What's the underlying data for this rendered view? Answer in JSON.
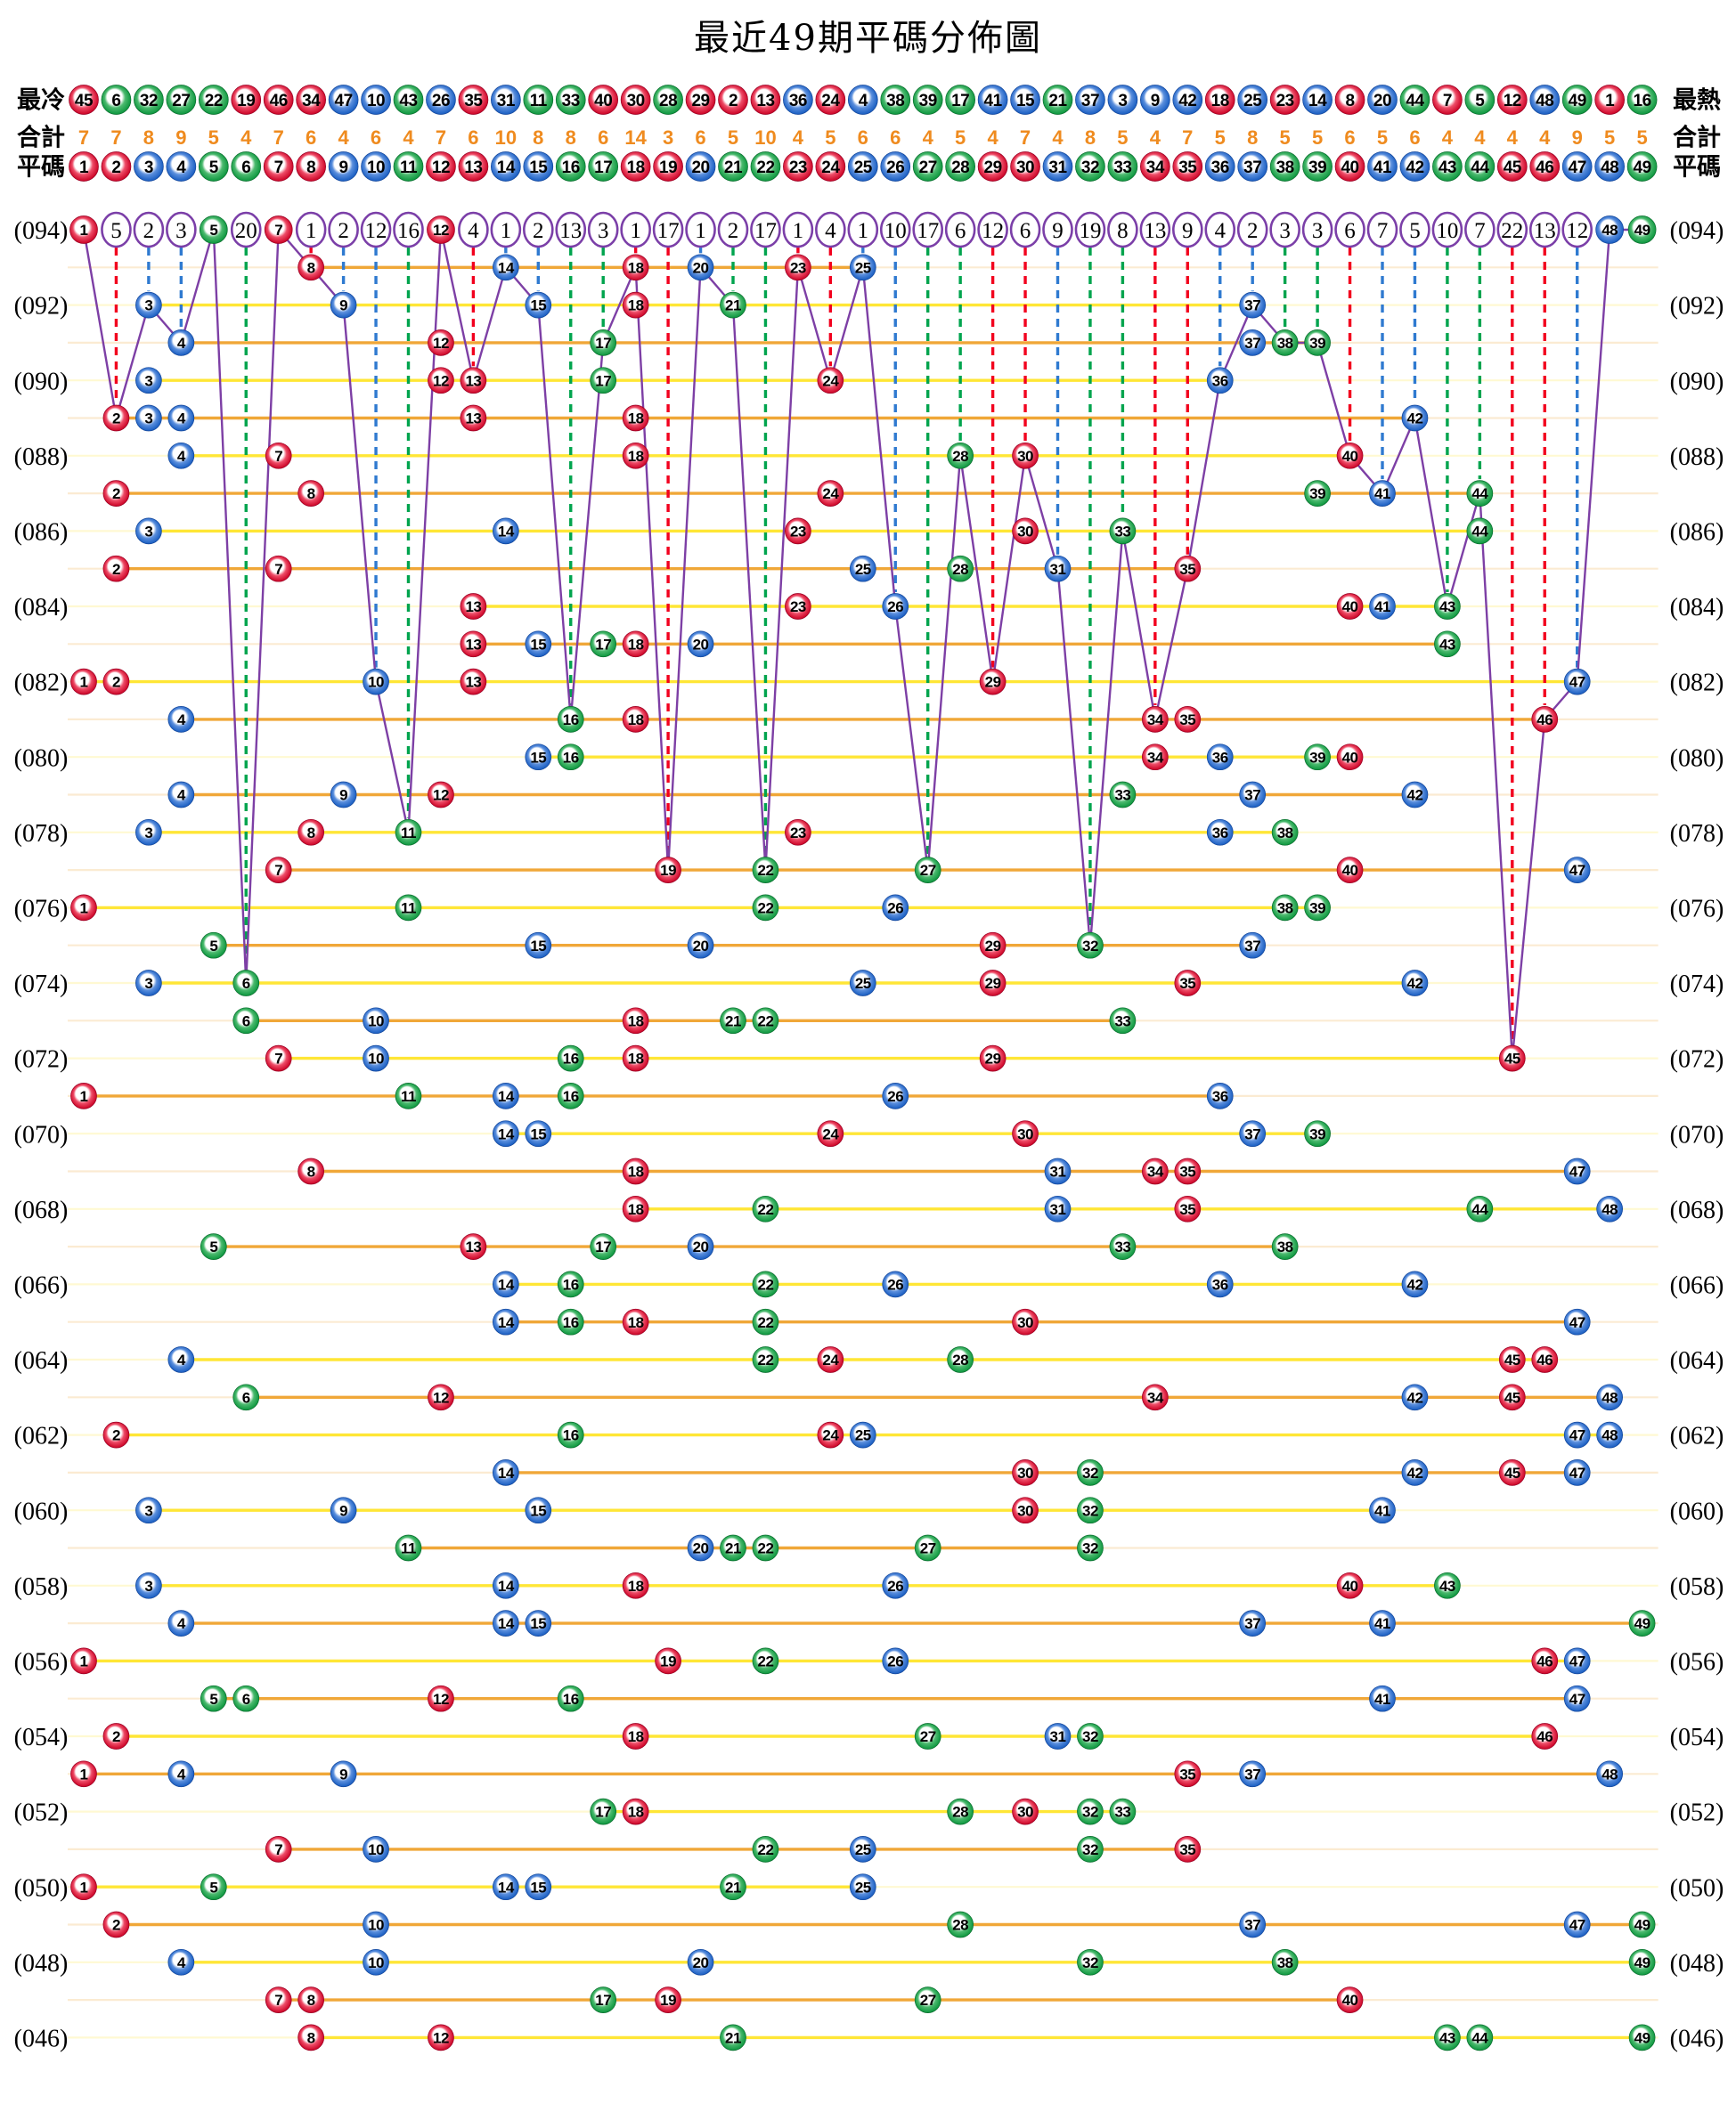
{
  "title": "最近49期平碼分佈圖",
  "header": {
    "cold_label": "最冷",
    "hot_label": "最熱",
    "total_label": "合計",
    "pingma_label": "平碼",
    "cold_order": [
      45,
      6,
      32,
      27,
      22,
      19,
      46,
      34,
      47,
      10,
      43,
      26,
      35,
      31,
      11,
      33,
      40,
      30,
      28,
      29,
      2,
      13,
      36,
      24,
      4,
      38,
      39,
      17,
      41,
      15,
      21,
      37,
      3,
      9,
      42,
      18,
      25,
      23,
      14,
      8,
      20,
      44,
      7,
      5,
      12,
      48,
      49,
      1,
      16
    ],
    "totals": [
      7,
      7,
      8,
      9,
      5,
      4,
      7,
      6,
      4,
      6,
      4,
      7,
      6,
      10,
      8,
      8,
      6,
      14,
      3,
      6,
      5,
      10,
      4,
      5,
      6,
      6,
      4,
      5,
      4,
      7,
      4,
      8,
      5,
      4,
      7,
      5,
      8,
      5,
      5,
      6,
      5,
      6,
      4,
      4,
      4,
      4,
      9,
      5,
      5
    ],
    "pingma_numbers": [
      1,
      2,
      3,
      4,
      5,
      6,
      7,
      8,
      9,
      10,
      11,
      12,
      13,
      14,
      15,
      16,
      17,
      18,
      19,
      20,
      21,
      22,
      23,
      24,
      25,
      26,
      27,
      28,
      29,
      30,
      31,
      32,
      33,
      34,
      35,
      36,
      37,
      38,
      39,
      40,
      41,
      42,
      43,
      44,
      45,
      46,
      47,
      48,
      49
    ]
  },
  "chart_data": {
    "type": "scatter",
    "x_axis": "ball-number-columns-1-to-49",
    "y_axis": "draw-periods-094-top-to-046-bottom",
    "top_period": {
      "period": 94,
      "label": "(094)",
      "drawn": [
        1,
        5,
        7,
        12,
        48,
        49
      ],
      "miss_counts": {
        "2": 5,
        "3": 2,
        "4": 3,
        "6": 20,
        "8": 1,
        "9": 2,
        "10": 12,
        "11": 16,
        "13": 4,
        "14": 1,
        "15": 2,
        "16": 13,
        "17": 3,
        "18": 1,
        "19": 17,
        "20": 1,
        "21": 2,
        "22": 17,
        "23": 1,
        "24": 4,
        "25": 1,
        "26": 10,
        "27": 17,
        "28": 6,
        "29": 12,
        "30": 6,
        "31": 9,
        "32": 19,
        "33": 8,
        "34": 13,
        "35": 9,
        "36": 4,
        "37": 2,
        "38": 3,
        "39": 3,
        "40": 6,
        "41": 7,
        "42": 5,
        "43": 10,
        "44": 7,
        "45": 22,
        "46": 13,
        "47": 12
      }
    },
    "periods": [
      {
        "period": 93,
        "label": "",
        "numbers": [
          8,
          14,
          18,
          20,
          23,
          25
        ]
      },
      {
        "period": 92,
        "label": "(092)",
        "numbers": [
          3,
          9,
          15,
          18,
          21,
          37
        ]
      },
      {
        "period": 91,
        "label": "",
        "numbers": [
          4,
          12,
          17,
          37,
          38,
          39
        ]
      },
      {
        "period": 90,
        "label": "(090)",
        "numbers": [
          3,
          12,
          13,
          17,
          24,
          36
        ]
      },
      {
        "period": 89,
        "label": "",
        "numbers": [
          2,
          3,
          4,
          13,
          18,
          42
        ]
      },
      {
        "period": 88,
        "label": "(088)",
        "numbers": [
          4,
          7,
          18,
          28,
          30,
          40
        ]
      },
      {
        "period": 87,
        "label": "",
        "numbers": [
          2,
          8,
          24,
          39,
          41,
          44
        ]
      },
      {
        "period": 86,
        "label": "(086)",
        "numbers": [
          3,
          14,
          23,
          30,
          33,
          44
        ]
      },
      {
        "period": 85,
        "label": "",
        "numbers": [
          2,
          7,
          25,
          28,
          31,
          35
        ]
      },
      {
        "period": 84,
        "label": "(084)",
        "numbers": [
          13,
          23,
          26,
          40,
          41,
          43
        ]
      },
      {
        "period": 83,
        "label": "",
        "numbers": [
          13,
          15,
          17,
          18,
          20,
          43
        ]
      },
      {
        "period": 82,
        "label": "(082)",
        "numbers": [
          1,
          2,
          10,
          13,
          29,
          47
        ]
      },
      {
        "period": 81,
        "label": "",
        "numbers": [
          4,
          16,
          18,
          34,
          35,
          46
        ]
      },
      {
        "period": 80,
        "label": "(080)",
        "numbers": [
          15,
          16,
          34,
          36,
          39,
          40
        ]
      },
      {
        "period": 79,
        "label": "",
        "numbers": [
          4,
          9,
          12,
          33,
          37,
          42
        ]
      },
      {
        "period": 78,
        "label": "(078)",
        "numbers": [
          3,
          8,
          11,
          23,
          36,
          38
        ]
      },
      {
        "period": 77,
        "label": "",
        "numbers": [
          7,
          19,
          22,
          27,
          40,
          47
        ]
      },
      {
        "period": 76,
        "label": "(076)",
        "numbers": [
          1,
          11,
          22,
          26,
          38,
          39
        ]
      },
      {
        "period": 75,
        "label": "",
        "numbers": [
          5,
          15,
          20,
          29,
          32,
          37
        ]
      },
      {
        "period": 74,
        "label": "(074)",
        "numbers": [
          3,
          6,
          25,
          29,
          35,
          42
        ]
      },
      {
        "period": 73,
        "label": "",
        "numbers": [
          6,
          10,
          18,
          21,
          22,
          33
        ]
      },
      {
        "period": 72,
        "label": "(072)",
        "numbers": [
          7,
          10,
          16,
          18,
          29,
          45
        ]
      },
      {
        "period": 71,
        "label": "",
        "numbers": [
          1,
          11,
          14,
          16,
          26,
          36
        ]
      },
      {
        "period": 70,
        "label": "(070)",
        "numbers": [
          14,
          15,
          24,
          30,
          37,
          39
        ]
      },
      {
        "period": 69,
        "label": "",
        "numbers": [
          8,
          18,
          31,
          34,
          35,
          47
        ]
      },
      {
        "period": 68,
        "label": "(068)",
        "numbers": [
          18,
          22,
          31,
          35,
          44,
          48
        ]
      },
      {
        "period": 67,
        "label": "",
        "numbers": [
          5,
          13,
          17,
          20,
          33,
          38
        ]
      },
      {
        "period": 66,
        "label": "(066)",
        "numbers": [
          14,
          16,
          22,
          26,
          36,
          42
        ]
      },
      {
        "period": 65,
        "label": "",
        "numbers": [
          14,
          16,
          18,
          22,
          30,
          47
        ]
      },
      {
        "period": 64,
        "label": "(064)",
        "numbers": [
          4,
          22,
          24,
          28,
          45,
          46
        ]
      },
      {
        "period": 63,
        "label": "",
        "numbers": [
          6,
          12,
          34,
          42,
          45,
          48
        ]
      },
      {
        "period": 62,
        "label": "(062)",
        "numbers": [
          2,
          16,
          24,
          25,
          47,
          48
        ]
      },
      {
        "period": 61,
        "label": "",
        "numbers": [
          14,
          30,
          32,
          42,
          45,
          47
        ]
      },
      {
        "period": 60,
        "label": "(060)",
        "numbers": [
          3,
          9,
          15,
          30,
          32,
          41
        ]
      },
      {
        "period": 59,
        "label": "",
        "numbers": [
          11,
          20,
          21,
          22,
          27,
          32
        ]
      },
      {
        "period": 58,
        "label": "(058)",
        "numbers": [
          3,
          14,
          18,
          26,
          40,
          43
        ]
      },
      {
        "period": 57,
        "label": "",
        "numbers": [
          4,
          14,
          15,
          37,
          41,
          49
        ]
      },
      {
        "period": 56,
        "label": "(056)",
        "numbers": [
          1,
          19,
          22,
          26,
          46,
          47
        ]
      },
      {
        "period": 55,
        "label": "",
        "numbers": [
          5,
          6,
          12,
          16,
          41,
          47
        ]
      },
      {
        "period": 54,
        "label": "(054)",
        "numbers": [
          2,
          18,
          27,
          31,
          32,
          46
        ]
      },
      {
        "period": 53,
        "label": "",
        "numbers": [
          1,
          4,
          9,
          35,
          37,
          48
        ]
      },
      {
        "period": 52,
        "label": "(052)",
        "numbers": [
          17,
          18,
          28,
          30,
          32,
          33
        ]
      },
      {
        "period": 51,
        "label": "",
        "numbers": [
          7,
          10,
          22,
          25,
          32,
          35
        ]
      },
      {
        "period": 50,
        "label": "(050)",
        "numbers": [
          1,
          5,
          14,
          15,
          21,
          25
        ]
      },
      {
        "period": 49,
        "label": "",
        "numbers": [
          2,
          10,
          28,
          37,
          47,
          49
        ]
      },
      {
        "period": 48,
        "label": "(048)",
        "numbers": [
          4,
          10,
          20,
          32,
          38,
          49
        ]
      },
      {
        "period": 47,
        "label": "",
        "numbers": [
          7,
          8,
          17,
          19,
          27,
          40
        ]
      },
      {
        "period": 46,
        "label": "(046)",
        "numbers": [
          8,
          12,
          21,
          43,
          44,
          49
        ]
      }
    ]
  },
  "color_groups": {
    "red": [
      1,
      2,
      7,
      8,
      12,
      13,
      18,
      19,
      23,
      24,
      29,
      30,
      34,
      35,
      40,
      45,
      46
    ],
    "blue": [
      3,
      4,
      9,
      10,
      14,
      15,
      20,
      25,
      26,
      31,
      36,
      37,
      41,
      42,
      47,
      48
    ],
    "green": [
      5,
      6,
      11,
      16,
      17,
      21,
      22,
      27,
      28,
      32,
      33,
      38,
      39,
      43,
      44,
      49
    ]
  },
  "colors": {
    "ball_red": "#cf0a2c",
    "ball_red_light": "#ee4d68",
    "ball_red_dark": "#9a0024",
    "ball_blue": "#1f62c4",
    "ball_blue_light": "#5b8fdd",
    "ball_blue_dark": "#14479b",
    "ball_green": "#139a43",
    "ball_green_light": "#4cba6f",
    "ball_green_dark": "#0a6e2e",
    "dash_red": "#f2001e",
    "dash_blue": "#2f7ad0",
    "dash_green": "#00a44e",
    "row_line_even": "#ffe636",
    "row_line_odd": "#f0a738",
    "trend_purple": "#7d3fa5",
    "circle_stroke": "#7b3fa8",
    "totals_text": "#ef8b1f",
    "label_text": "#000000"
  }
}
